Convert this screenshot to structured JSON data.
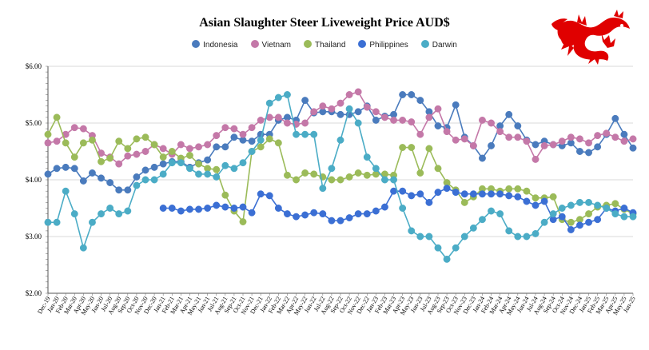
{
  "chart_data": {
    "type": "line",
    "title": "Asian Slaughter Steer Liveweight Price AUD$",
    "xlabel": "",
    "ylabel": "",
    "ylim": [
      2,
      6
    ],
    "yticks": [
      "$2.00",
      "$3.00",
      "$4.00",
      "$5.00",
      "$6.00"
    ],
    "grid": true,
    "legend": "top-center",
    "categories": [
      "Dec-19",
      "Jan-20",
      "Feb-20",
      "Mar-20",
      "Apr-20",
      "May-20",
      "Jun-20",
      "Jul-20",
      "Aug-20",
      "Sep-20",
      "Oct-20",
      "Nov-20",
      "Dec-20",
      "Jan-21",
      "Feb-21",
      "Mar-21",
      "Apr-21",
      "May-21",
      "Jun-21",
      "Jul-21",
      "Aug-21",
      "Sep-21",
      "Oct-21",
      "Nov-21",
      "Dec-21",
      "Jan-22",
      "Feb-22",
      "Mar-22",
      "Apr-22",
      "May-22",
      "Jun-22",
      "Jul-22",
      "Aug-22",
      "Sep-22",
      "Oct-22",
      "Nov-22",
      "Dec-22",
      "Jan-23",
      "Feb-23",
      "Mar-23",
      "Apr-23",
      "May-23",
      "Jun-23",
      "Jul-23",
      "Aug-23",
      "Sep-23",
      "Oct-23",
      "Nov-23",
      "Dec-23",
      "Jan-24",
      "Feb-24",
      "Mar-24",
      "Apr-24",
      "May-24",
      "Jun-24",
      "Jul-24",
      "Aug-24",
      "Sep-24",
      "Oct-24",
      "Nov-24",
      "Dec-24",
      "Jan-25",
      "Feb-25",
      "Mar-25",
      "Apr-25",
      "May-25",
      "Jun-25"
    ],
    "series": [
      {
        "name": "Indonesia",
        "color": "#4a7bbd",
        "values": [
          4.1,
          4.2,
          4.22,
          4.2,
          3.98,
          4.12,
          4.03,
          3.95,
          3.82,
          3.82,
          4.05,
          4.17,
          4.22,
          4.28,
          4.32,
          4.32,
          4.22,
          4.3,
          4.35,
          4.58,
          4.58,
          4.75,
          4.7,
          4.68,
          4.8,
          4.8,
          5.05,
          5.1,
          5.05,
          5.4,
          5.18,
          5.2,
          5.2,
          5.15,
          5.15,
          5.2,
          5.3,
          5.05,
          5.12,
          5.15,
          5.5,
          5.5,
          5.4,
          5.2,
          4.95,
          4.92,
          5.32,
          4.75,
          4.6,
          4.38,
          4.6,
          4.95,
          5.15,
          4.95,
          4.7,
          4.62,
          4.68,
          4.62,
          4.6,
          4.65,
          4.5,
          4.48,
          4.58,
          4.8,
          5.08,
          4.8,
          4.56
        ]
      },
      {
        "name": "Vietnam",
        "color": "#c478a8",
        "values": [
          4.65,
          4.68,
          4.8,
          4.92,
          4.9,
          4.78,
          4.47,
          4.4,
          4.28,
          4.42,
          4.45,
          4.5,
          4.62,
          4.55,
          4.45,
          4.62,
          4.55,
          4.58,
          4.62,
          4.78,
          4.92,
          4.9,
          4.8,
          4.92,
          5.05,
          5.1,
          5.1,
          5.0,
          4.98,
          5.0,
          5.2,
          5.3,
          5.25,
          5.35,
          5.5,
          5.55,
          5.28,
          5.2,
          5.1,
          5.05,
          5.05,
          5.02,
          4.8,
          5.1,
          5.25,
          4.85,
          4.7,
          4.72,
          4.6,
          5.05,
          5.0,
          4.85,
          4.75,
          4.75,
          4.68,
          4.36,
          4.6,
          4.62,
          4.68,
          4.75,
          4.72,
          4.65,
          4.78,
          4.82,
          4.75,
          4.68,
          4.72
        ]
      },
      {
        "name": "Thailand",
        "color": "#9bbb59",
        "values": [
          4.8,
          5.1,
          4.65,
          4.4,
          4.65,
          4.7,
          4.32,
          4.38,
          4.68,
          4.55,
          4.72,
          4.75,
          4.62,
          4.4,
          4.5,
          4.38,
          4.43,
          4.28,
          4.2,
          4.18,
          3.73,
          3.45,
          3.26,
          4.5,
          4.58,
          4.72,
          4.65,
          4.08,
          4.0,
          4.12,
          4.1,
          4.05,
          4.0,
          4.0,
          4.05,
          4.12,
          4.08,
          4.1,
          4.1,
          4.08,
          4.57,
          4.57,
          4.12,
          4.55,
          4.2,
          3.95,
          3.82,
          3.6,
          3.7,
          3.84,
          3.84,
          3.8,
          3.84,
          3.84,
          3.8,
          3.68,
          3.68,
          3.7,
          3.3,
          3.25,
          3.3,
          3.4,
          3.52,
          3.55,
          3.58,
          3.48,
          3.4
        ]
      },
      {
        "name": "Philippines",
        "color": "#3b6fd4",
        "values": [
          null,
          null,
          null,
          null,
          null,
          null,
          null,
          null,
          null,
          null,
          null,
          null,
          null,
          3.5,
          3.5,
          3.45,
          3.48,
          3.48,
          3.5,
          3.55,
          3.52,
          3.5,
          3.52,
          3.42,
          3.75,
          3.72,
          3.5,
          3.4,
          3.35,
          3.38,
          3.42,
          3.4,
          3.28,
          3.28,
          3.33,
          3.4,
          3.4,
          3.45,
          3.52,
          3.8,
          3.8,
          3.72,
          3.75,
          3.6,
          3.78,
          3.85,
          3.78,
          3.75,
          3.75,
          3.75,
          3.75,
          3.75,
          3.72,
          3.7,
          3.62,
          3.55,
          3.62,
          3.3,
          3.35,
          3.12,
          3.2,
          3.25,
          3.3,
          3.5,
          3.45,
          3.5,
          3.42
        ]
      },
      {
        "name": "Darwin",
        "color": "#4bacc6",
        "values": [
          3.25,
          3.25,
          3.8,
          3.4,
          2.8,
          3.25,
          3.4,
          3.5,
          3.4,
          3.45,
          3.9,
          4.0,
          4.0,
          4.1,
          4.3,
          4.3,
          4.2,
          4.1,
          4.1,
          4.05,
          4.25,
          4.2,
          4.3,
          4.5,
          4.7,
          5.35,
          5.45,
          5.5,
          4.8,
          4.8,
          4.8,
          3.85,
          4.2,
          4.7,
          5.25,
          5.0,
          4.4,
          4.2,
          4.0,
          4.0,
          3.5,
          3.1,
          3.0,
          3.0,
          2.8,
          2.6,
          2.8,
          3.0,
          3.15,
          3.3,
          3.45,
          3.4,
          3.1,
          3.0,
          3.0,
          3.05,
          3.25,
          3.4,
          3.5,
          3.55,
          3.6,
          3.6,
          3.55,
          3.5,
          3.4,
          3.35,
          3.35
        ]
      }
    ]
  },
  "logo": {
    "name": "red-dragon-logo"
  }
}
